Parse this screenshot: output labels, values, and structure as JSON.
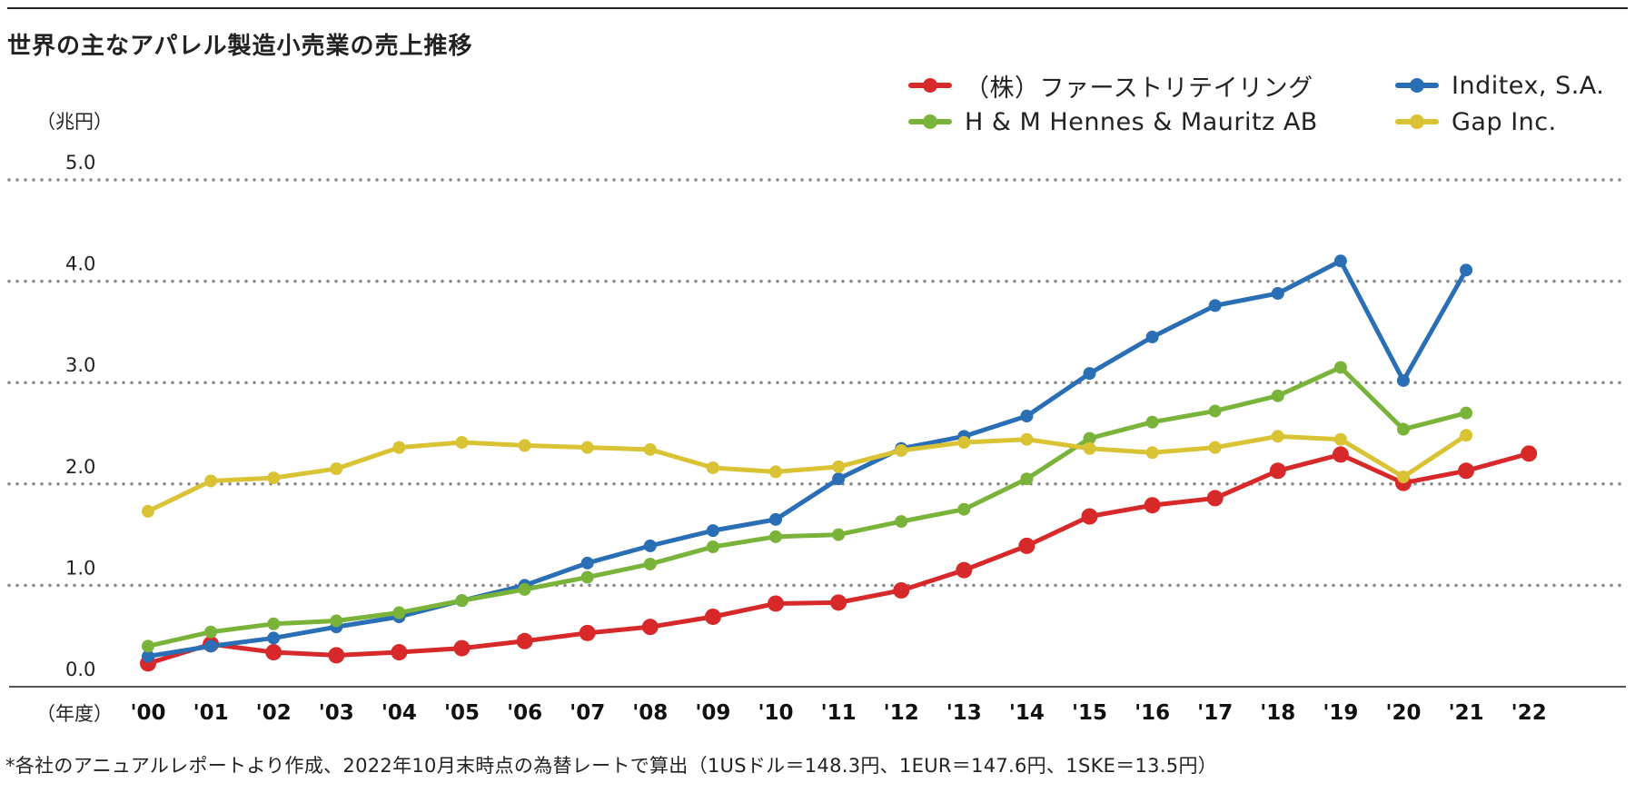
{
  "title": "世界の主なアパレル製造小売業の売上推移",
  "y_unit": "（兆円）",
  "x_unit": "（年度）",
  "footnote": "*各社のアニュアルレポートより作成、2022年10月末時点の為替レートで算出（1USドル＝148.3円、1EUR＝147.6円、1SKE＝13.5円）",
  "colors": {
    "fast_retailing": "#d7282a",
    "inditex": "#2a6eb5",
    "hm": "#79b33a",
    "gap": "#d9c234",
    "grid": "#888888",
    "axis": "#555555"
  },
  "chart_data": {
    "type": "line",
    "categories": [
      "'00",
      "'01",
      "'02",
      "'03",
      "'04",
      "'05",
      "'06",
      "'07",
      "'08",
      "'09",
      "'10",
      "'11",
      "'12",
      "'13",
      "'14",
      "'15",
      "'16",
      "'17",
      "'18",
      "'19",
      "'20",
      "'21",
      "'22"
    ],
    "yticks": [
      "0.0",
      "1.0",
      "2.0",
      "3.0",
      "4.0",
      "5.0"
    ],
    "ylim": [
      0,
      5
    ],
    "grid": true,
    "legend_position": "top-right",
    "series": [
      {
        "key": "fast_retailing",
        "name": "（株）ファーストリテイリング",
        "values": [
          0.23,
          0.42,
          0.34,
          0.31,
          0.34,
          0.38,
          0.45,
          0.53,
          0.59,
          0.69,
          0.82,
          0.83,
          0.95,
          1.15,
          1.39,
          1.68,
          1.79,
          1.86,
          2.13,
          2.29,
          2.01,
          2.13,
          2.3
        ]
      },
      {
        "key": "inditex",
        "name": "Inditex, S.A.",
        "values": [
          0.3,
          0.4,
          0.48,
          0.59,
          0.69,
          0.85,
          1.0,
          1.22,
          1.39,
          1.54,
          1.65,
          2.05,
          2.35,
          2.47,
          2.67,
          3.09,
          3.45,
          3.76,
          3.88,
          4.2,
          3.02,
          4.11,
          null
        ]
      },
      {
        "key": "hm",
        "name": "H & M Hennes & Mauritz AB",
        "values": [
          0.4,
          0.54,
          0.62,
          0.65,
          0.73,
          0.85,
          0.96,
          1.08,
          1.21,
          1.38,
          1.48,
          1.5,
          1.63,
          1.75,
          2.05,
          2.45,
          2.61,
          2.72,
          2.87,
          3.15,
          2.54,
          2.7,
          null
        ]
      },
      {
        "key": "gap",
        "name": "Gap Inc.",
        "values": [
          1.73,
          2.03,
          2.06,
          2.15,
          2.36,
          2.41,
          2.38,
          2.36,
          2.34,
          2.16,
          2.12,
          2.17,
          2.33,
          2.41,
          2.44,
          2.35,
          2.31,
          2.36,
          2.47,
          2.44,
          2.07,
          2.48,
          null
        ]
      }
    ]
  }
}
